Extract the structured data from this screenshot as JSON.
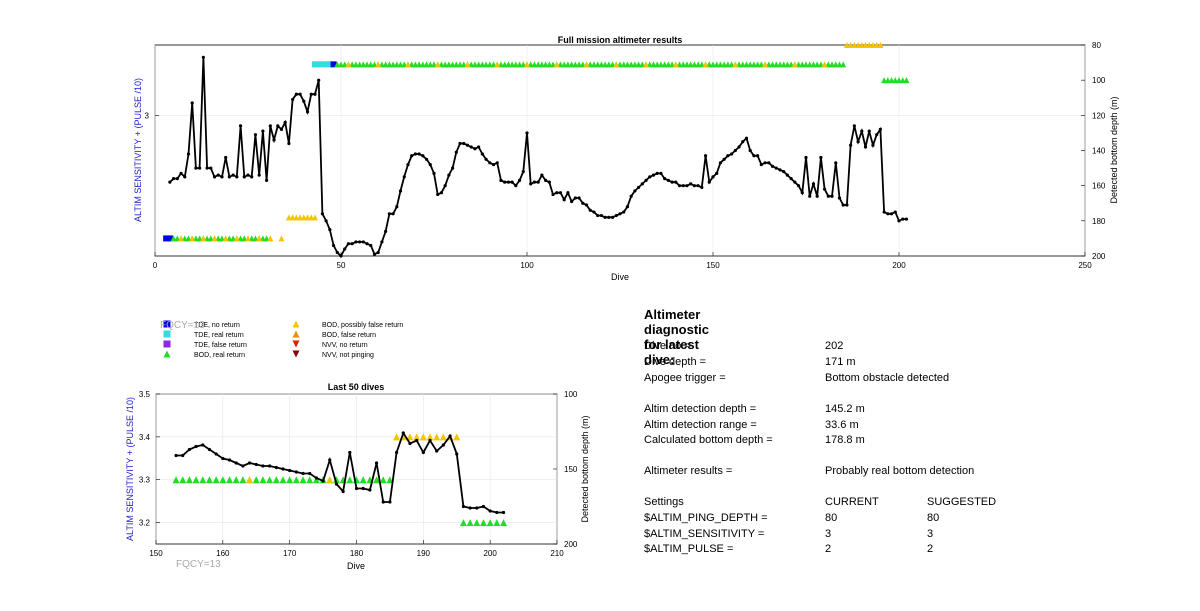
{
  "colors": {
    "line": "#000000",
    "tde_no_return": "#0000ee",
    "tde_real_return": "#33dddd",
    "tde_false_return": "#8a2be2",
    "bod_real_return": "#22dd22",
    "bod_possibly_false": "#f5c400",
    "bod_false": "#f08c00",
    "nvv_no_return": "#dd2200",
    "nvv_not_pinging": "#8b0000",
    "ylabel_blue": "#2222cc"
  },
  "chart_data": [
    {
      "id": "full",
      "type": "line",
      "title": "Full mission altimeter results",
      "xlabel": "Dive",
      "ylabel_left": "ALTIM SENSITIVITY + (PULSE /10)",
      "ylabel_right": "Detected bottom depth (m)",
      "xlim": [
        0,
        250
      ],
      "ylim_right": [
        200,
        80
      ],
      "x_ticks": [
        "0",
        "50",
        "100",
        "150",
        "200",
        "250"
      ],
      "x_tick_values": [
        0,
        50,
        100,
        150,
        200,
        250
      ],
      "y_ticks_right": [
        "80",
        "100",
        "120",
        "140",
        "160",
        "180",
        "200"
      ],
      "y_tick_values_right": [
        80,
        100,
        120,
        140,
        160,
        180,
        200
      ],
      "y_ticks_left": [
        "3"
      ],
      "y_tick_value_left_depth": 120,
      "grid": true,
      "depth_series": {
        "x": [
          4,
          5,
          6,
          7,
          8,
          9,
          10,
          11,
          12,
          13,
          14,
          15,
          16,
          17,
          18,
          19,
          20,
          21,
          22,
          23,
          24,
          25,
          26,
          27,
          28,
          29,
          30,
          31,
          32,
          33,
          34,
          35,
          36,
          37,
          38,
          39,
          40,
          41,
          42,
          43,
          44,
          45,
          46,
          47,
          48,
          49,
          50,
          51,
          52,
          53,
          54,
          55,
          56,
          57,
          58,
          59,
          60,
          61,
          62,
          63,
          64,
          65,
          66,
          67,
          68,
          69,
          70,
          71,
          72,
          73,
          74,
          75,
          76,
          77,
          78,
          79,
          80,
          81,
          82,
          83,
          84,
          85,
          86,
          87,
          88,
          89,
          90,
          91,
          92,
          93,
          94,
          95,
          96,
          97,
          98,
          99,
          100,
          101,
          102,
          103,
          104,
          105,
          106,
          107,
          108,
          109,
          110,
          111,
          112,
          113,
          114,
          115,
          116,
          117,
          118,
          119,
          120,
          121,
          122,
          123,
          124,
          125,
          126,
          127,
          128,
          129,
          130,
          131,
          132,
          133,
          134,
          135,
          136,
          137,
          138,
          139,
          140,
          141,
          142,
          143,
          144,
          145,
          146,
          147,
          148,
          149,
          150,
          151,
          152,
          153,
          154,
          155,
          156,
          157,
          158,
          159,
          160,
          161,
          162,
          163,
          164,
          165,
          166,
          167,
          168,
          169,
          170,
          171,
          172,
          173,
          174,
          175,
          176,
          177,
          178,
          179,
          180,
          181,
          182,
          183,
          184,
          185,
          186,
          187,
          188,
          189,
          190,
          191,
          192,
          193,
          194,
          195,
          196,
          197,
          198,
          199,
          200,
          201,
          202
        ],
        "depth": [
          158,
          156,
          156,
          153,
          155,
          142,
          113,
          150,
          150,
          87,
          150,
          150,
          155,
          154,
          155,
          144,
          155,
          154,
          155,
          126,
          155,
          154,
          155,
          131,
          154,
          129,
          157,
          126,
          134,
          126,
          128,
          124,
          136,
          111,
          108,
          108,
          112,
          118,
          108,
          108,
          100,
          176,
          180,
          185,
          194,
          198,
          200,
          196,
          193,
          193,
          192,
          192,
          192,
          193,
          194,
          199,
          198,
          192,
          186,
          176,
          176,
          172,
          163,
          155,
          148,
          143,
          142,
          142,
          143,
          145,
          148,
          153,
          165,
          164,
          160,
          154,
          150,
          141,
          136,
          136,
          137,
          138,
          139,
          138,
          142,
          145,
          147,
          148,
          147,
          157,
          158,
          158,
          158,
          160,
          157,
          152,
          130,
          159,
          158,
          158,
          154,
          157,
          158,
          165,
          164,
          164,
          168,
          164,
          169,
          167,
          167,
          170,
          171,
          174,
          175,
          177,
          177,
          178,
          178,
          178,
          177,
          176,
          175,
          172,
          166,
          163,
          161,
          159,
          157,
          155,
          154,
          153,
          153,
          156,
          157,
          158,
          158,
          160,
          160,
          160,
          159,
          160,
          160,
          161,
          143,
          158,
          155,
          153,
          147,
          145,
          143,
          142,
          140,
          138,
          135,
          133,
          140,
          143,
          143,
          148,
          147,
          147,
          149,
          150,
          151,
          152,
          154,
          156,
          158,
          160,
          164,
          144,
          166,
          159,
          166,
          144,
          162,
          166,
          166,
          147,
          167,
          171,
          171,
          137,
          126,
          135,
          129,
          138,
          129,
          137,
          131,
          128,
          175,
          176,
          176,
          175,
          180,
          179,
          179
        ]
      },
      "markers": [
        {
          "category": "TDE, no return",
          "color": "tde_no_return",
          "shape": "square",
          "depth": 190,
          "x_from": 3,
          "x_to": 4,
          "step": 1
        },
        {
          "category": "BOD, real return",
          "color": "bod_real_return",
          "shape": "triangle-up",
          "depth": 190,
          "x_from": 5,
          "x_to": 30,
          "step": 1
        },
        {
          "category": "BOD, possibly false return",
          "color": "bod_possibly_false",
          "shape": "triangle-up",
          "depth": 190,
          "x_from": 7,
          "x_to": 36,
          "step": 3
        },
        {
          "category": "BOD, possibly false return",
          "color": "bod_possibly_false",
          "shape": "triangle-up",
          "depth": 178,
          "x_from": 36,
          "x_to": 43,
          "step": 1
        },
        {
          "category": "TDE, real return",
          "color": "tde_real_return",
          "shape": "square",
          "depth": 91,
          "x_from": 43,
          "x_to": 47,
          "step": 1
        },
        {
          "category": "TDE, no return",
          "color": "tde_no_return",
          "shape": "square",
          "depth": 91,
          "x_from": 48,
          "x_to": 48,
          "step": 1
        },
        {
          "category": "BOD, real return",
          "color": "bod_real_return",
          "shape": "triangle-up",
          "depth": 91,
          "x_from": 49,
          "x_to": 185,
          "step": 1
        },
        {
          "category": "BOD, possibly false return",
          "color": "bod_possibly_false",
          "shape": "triangle-up",
          "depth": 91,
          "x_from": 52,
          "x_to": 182,
          "step": 8
        },
        {
          "category": "BOD, possibly false return",
          "color": "bod_possibly_false",
          "shape": "triangle-up",
          "depth": 80,
          "x_from": 186,
          "x_to": 195,
          "step": 1
        },
        {
          "category": "BOD, real return",
          "color": "bod_real_return",
          "shape": "triangle-up",
          "depth": 100,
          "x_from": 196,
          "x_to": 202,
          "step": 1
        }
      ]
    },
    {
      "id": "last50",
      "type": "line",
      "title": "Last 50 dives",
      "xlabel": "Dive",
      "ylabel_left": "ALTIM SENSITIVITY + (PULSE /10)",
      "ylabel_right": "Detected bottom depth (m)",
      "xlim": [
        150,
        210
      ],
      "ylim_left": [
        3.15,
        3.5
      ],
      "ylim_right": [
        200,
        100
      ],
      "x_ticks": [
        "150",
        "160",
        "170",
        "180",
        "190",
        "200",
        "210"
      ],
      "x_tick_values": [
        150,
        160,
        170,
        180,
        190,
        200,
        210
      ],
      "y_ticks_left": [
        "3.2",
        "3.3",
        "3.4",
        "3.5"
      ],
      "y_tick_values_left": [
        3.2,
        3.3,
        3.4,
        3.5
      ],
      "y_ticks_right": [
        "100",
        "150",
        "200"
      ],
      "y_tick_values_right": [
        100,
        150,
        200
      ],
      "grid": true,
      "depth_series": {
        "x": [
          153,
          154,
          155,
          156,
          157,
          158,
          159,
          160,
          161,
          162,
          163,
          164,
          165,
          166,
          167,
          168,
          169,
          170,
          171,
          172,
          173,
          174,
          175,
          176,
          177,
          178,
          179,
          180,
          181,
          182,
          183,
          184,
          185,
          186,
          187,
          188,
          189,
          190,
          191,
          192,
          193,
          194,
          195,
          196,
          197,
          198,
          199,
          200,
          201,
          202
        ],
        "depth": [
          141,
          141,
          137,
          135,
          134,
          137,
          140,
          143,
          144,
          146,
          148,
          146,
          147,
          148,
          148,
          149,
          150,
          151,
          152,
          153,
          153,
          156,
          158,
          144,
          160,
          165,
          139,
          163,
          163,
          164,
          146,
          172,
          172,
          139,
          126,
          133,
          131,
          139,
          131,
          138,
          134,
          128,
          140,
          175,
          176,
          176,
          175,
          178,
          179,
          179
        ]
      },
      "sensitivity_markers": [
        {
          "category": "BOD, real return",
          "color": "bod_real_return",
          "shape": "triangle-up",
          "value": 3.3,
          "x_from": 153,
          "x_to": 185,
          "step": 1
        },
        {
          "category": "BOD, possibly false return",
          "color": "bod_possibly_false",
          "shape": "triangle-up",
          "value": 3.3,
          "x_from": 164,
          "x_to": 176,
          "step": 12
        },
        {
          "category": "BOD, possibly false return",
          "color": "bod_possibly_false",
          "shape": "triangle-up",
          "value": 3.4,
          "x_from": 186,
          "x_to": 195,
          "step": 1
        },
        {
          "category": "BOD, real return",
          "color": "bod_real_return",
          "shape": "triangle-up",
          "value": 3.2,
          "x_from": 196,
          "x_to": 202,
          "step": 1
        }
      ],
      "fqcy_label": "FQCY=13"
    }
  ],
  "legend": {
    "overlap_text": "FQCY=13",
    "items": [
      {
        "label": "TDE, no return",
        "color": "tde_no_return",
        "shape": "square"
      },
      {
        "label": "TDE, real return",
        "color": "tde_real_return",
        "shape": "square"
      },
      {
        "label": "TDE, false return",
        "color": "tde_false_return",
        "shape": "square"
      },
      {
        "label": "BOD, real return",
        "color": "bod_real_return",
        "shape": "triangle-up"
      },
      {
        "label": "BOD, possibly false return",
        "color": "bod_possibly_false",
        "shape": "triangle-up"
      },
      {
        "label": "BOD, false return",
        "color": "bod_false",
        "shape": "triangle-up"
      },
      {
        "label": "NVV, no return",
        "color": "nvv_no_return",
        "shape": "triangle-down"
      },
      {
        "label": "NVV, not pinging",
        "color": "nvv_not_pinging",
        "shape": "triangle-down"
      }
    ]
  },
  "diagnostic": {
    "title": "Altimeter diagnostic for latest dive:",
    "dive_no_label": "Dive no =",
    "dive_no_value": "202",
    "dive_depth_label": "Dive depth =",
    "dive_depth_value": "171 m",
    "apogee_label": "Apogee trigger =",
    "apogee_value": "Bottom obstacle detected",
    "altim_det_depth_label": "Altim detection depth =",
    "altim_det_depth_value": "145.2 m",
    "altim_det_range_label": "Altim detection range =",
    "altim_det_range_value": "33.6 m",
    "calc_bottom_label": "Calculated bottom depth =",
    "calc_bottom_value": "178.8 m",
    "results_label": "Altimeter results =",
    "results_value": "Probably real bottom detection",
    "settings_label": "Settings",
    "current_label": "CURRENT",
    "suggested_label": "SUGGESTED",
    "ping_depth_label": "$ALTIM_PING_DEPTH =",
    "ping_depth_current": "80",
    "ping_depth_suggested": "80",
    "sensitivity_label": "$ALTIM_SENSITIVITY =",
    "sensitivity_current": "3",
    "sensitivity_suggested": "3",
    "pulse_label": "$ALTIM_PULSE =",
    "pulse_current": "2",
    "pulse_suggested": "2"
  }
}
